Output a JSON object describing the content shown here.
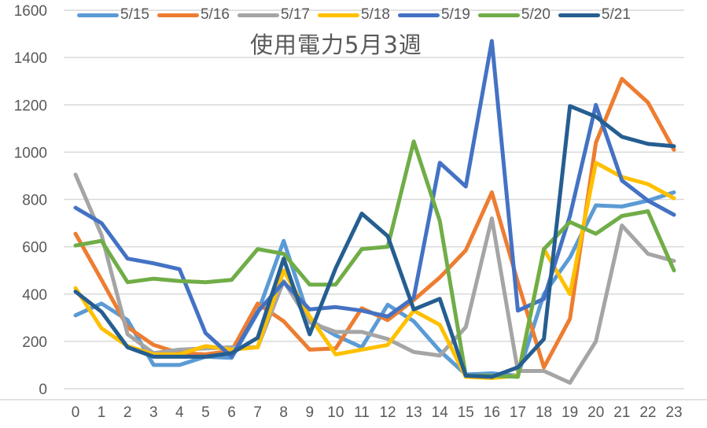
{
  "chart_data": {
    "type": "line",
    "title": "使用電力5月3週",
    "xlabel": "",
    "ylabel": "",
    "x": [
      0,
      1,
      2,
      3,
      4,
      5,
      6,
      7,
      8,
      9,
      10,
      11,
      12,
      13,
      14,
      15,
      16,
      17,
      18,
      19,
      20,
      21,
      22,
      23
    ],
    "ylim": [
      0,
      1600
    ],
    "yticks": [
      0,
      200,
      400,
      600,
      800,
      1000,
      1200,
      1400,
      1600
    ],
    "grid": true,
    "legend_position": "top",
    "series": [
      {
        "name": "5/15",
        "color": "#5B9BD5",
        "values": [
          310,
          360,
          290,
          100,
          100,
          135,
          130,
          320,
          625,
          290,
          225,
          175,
          355,
          285,
          160,
          60,
          65,
          55,
          400,
          555,
          775,
          770,
          795,
          830
        ]
      },
      {
        "name": "5/16",
        "color": "#ED7D31",
        "values": [
          655,
          460,
          260,
          185,
          150,
          145,
          160,
          360,
          285,
          165,
          170,
          340,
          290,
          375,
          470,
          585,
          830,
          450,
          90,
          295,
          1040,
          1310,
          1210,
          1010
        ]
      },
      {
        "name": "5/17",
        "color": "#A5A5A5",
        "values": [
          905,
          650,
          230,
          150,
          165,
          170,
          175,
          175,
          455,
          280,
          240,
          240,
          210,
          155,
          140,
          260,
          720,
          75,
          75,
          25,
          200,
          690,
          570,
          540
        ]
      },
      {
        "name": "5/18",
        "color": "#FFC000",
        "values": [
          425,
          255,
          180,
          145,
          145,
          180,
          165,
          175,
          500,
          305,
          145,
          165,
          185,
          330,
          270,
          50,
          45,
          55,
          590,
          400,
          955,
          895,
          865,
          805
        ]
      },
      {
        "name": "5/19",
        "color": "#4472C4",
        "values": [
          765,
          700,
          550,
          530,
          505,
          235,
          135,
          325,
          450,
          335,
          345,
          330,
          305,
          385,
          955,
          855,
          1470,
          330,
          380,
          730,
          1200,
          880,
          795,
          735
        ]
      },
      {
        "name": "5/20",
        "color": "#70AD47",
        "values": [
          605,
          625,
          450,
          465,
          455,
          450,
          460,
          590,
          570,
          440,
          440,
          590,
          600,
          1045,
          710,
          55,
          55,
          50,
          590,
          705,
          655,
          730,
          750,
          500
        ]
      },
      {
        "name": "5/21",
        "color": "#255E91",
        "values": [
          410,
          325,
          175,
          135,
          135,
          135,
          150,
          215,
          550,
          230,
          510,
          740,
          645,
          335,
          380,
          55,
          50,
          90,
          210,
          1195,
          1150,
          1065,
          1035,
          1025
        ]
      }
    ]
  },
  "title": "使用電力5月3週",
  "legend": [
    {
      "label": "5/15",
      "color": "#5B9BD5"
    },
    {
      "label": "5/16",
      "color": "#ED7D31"
    },
    {
      "label": "5/17",
      "color": "#A5A5A5"
    },
    {
      "label": "5/18",
      "color": "#FFC000"
    },
    {
      "label": "5/19",
      "color": "#4472C4"
    },
    {
      "label": "5/20",
      "color": "#70AD47"
    },
    {
      "label": "5/21",
      "color": "#255E91"
    }
  ]
}
